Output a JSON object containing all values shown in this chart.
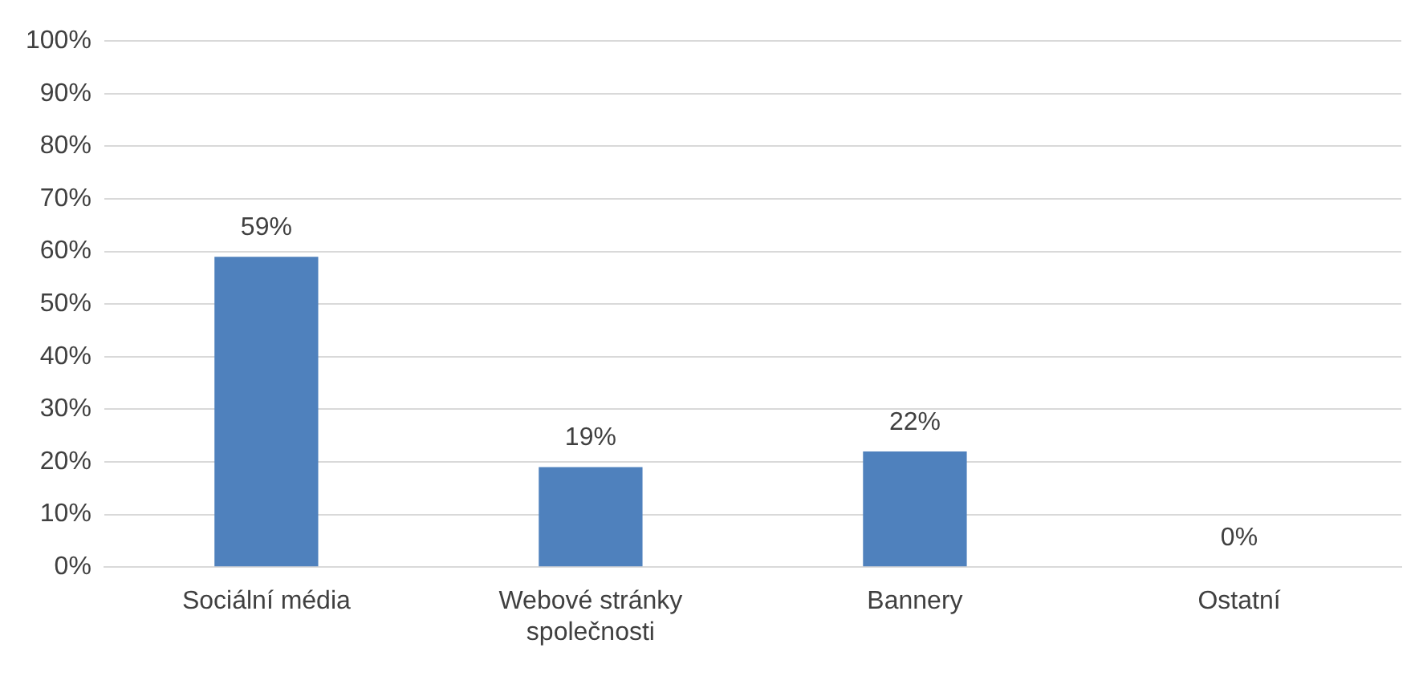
{
  "chart_data": {
    "type": "bar",
    "categories": [
      "Sociální média",
      "Webové stránky společnosti",
      "Bannery",
      "Ostatní"
    ],
    "values": [
      59,
      19,
      22,
      0
    ],
    "value_labels": [
      "59%",
      "19%",
      "22%",
      "0%"
    ],
    "color": "#4f81bd",
    "ylim": [
      0,
      100
    ],
    "yticks": [
      {
        "value": 0,
        "label": "0%"
      },
      {
        "value": 10,
        "label": "10%"
      },
      {
        "value": 20,
        "label": "20%"
      },
      {
        "value": 30,
        "label": "30%"
      },
      {
        "value": 40,
        "label": "40%"
      },
      {
        "value": 50,
        "label": "50%"
      },
      {
        "value": 60,
        "label": "60%"
      },
      {
        "value": 70,
        "label": "70%"
      },
      {
        "value": 80,
        "label": "80%"
      },
      {
        "value": 90,
        "label": "90%"
      },
      {
        "value": 100,
        "label": "100%"
      }
    ],
    "grid": "y",
    "legend": false
  }
}
